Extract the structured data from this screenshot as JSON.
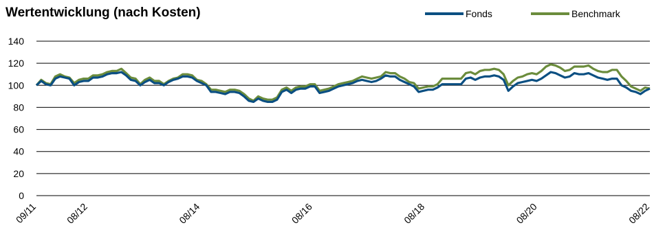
{
  "chart_data": {
    "type": "line",
    "title": "Wertentwicklung (nach Kosten)",
    "ylim": [
      0,
      140
    ],
    "yticks": [
      0,
      20,
      40,
      60,
      80,
      100,
      120,
      140
    ],
    "xticks": [
      "09/11",
      "08/12",
      "08/14",
      "08/16",
      "08/18",
      "08/20",
      "08/22"
    ],
    "xrange": [
      "09/11",
      "08/22"
    ],
    "grid": "horizontal",
    "legend_position": "top-right",
    "series": [
      {
        "name": "Fonds",
        "color": "#0b4f82",
        "values": [
          100,
          104,
          101,
          100,
          106,
          108,
          107,
          106,
          100,
          103,
          104,
          104,
          107,
          107,
          108,
          110,
          111,
          111,
          112,
          109,
          105,
          104,
          100,
          103,
          105,
          102,
          102,
          100,
          103,
          105,
          106,
          108,
          108,
          107,
          104,
          102,
          100,
          94,
          94,
          93,
          92,
          94,
          94,
          93,
          90,
          86,
          85,
          88,
          86,
          85,
          85,
          87,
          94,
          96,
          93,
          96,
          97,
          97,
          99,
          99,
          93,
          94,
          95,
          97,
          99,
          100,
          101,
          102,
          104,
          105,
          104,
          103,
          104,
          106,
          109,
          108,
          108,
          105,
          103,
          101,
          99,
          94,
          95,
          96,
          96,
          98,
          101,
          101,
          101,
          101,
          101,
          106,
          107,
          105,
          107,
          108,
          108,
          109,
          108,
          105,
          95,
          99,
          102,
          103,
          104,
          105,
          104,
          106,
          109,
          112,
          111,
          109,
          107,
          108,
          111,
          110,
          110,
          111,
          109,
          107,
          106,
          105,
          106,
          106,
          100,
          98,
          95,
          94,
          92,
          95,
          97
        ]
      },
      {
        "name": "Benchmark",
        "color": "#6b8c3c",
        "values": [
          100,
          105,
          102,
          101,
          108,
          110,
          108,
          107,
          102,
          105,
          106,
          106,
          109,
          109,
          110,
          112,
          113,
          113,
          115,
          111,
          107,
          106,
          101,
          105,
          107,
          104,
          104,
          101,
          104,
          106,
          107,
          110,
          110,
          109,
          105,
          104,
          101,
          96,
          96,
          95,
          94,
          96,
          96,
          95,
          92,
          88,
          86,
          90,
          88,
          87,
          87,
          89,
          96,
          98,
          95,
          98,
          99,
          99,
          101,
          101,
          95,
          96,
          97,
          99,
          101,
          102,
          103,
          104,
          106,
          108,
          107,
          106,
          107,
          108,
          112,
          111,
          111,
          108,
          106,
          103,
          102,
          97,
          98,
          99,
          99,
          101,
          106,
          106,
          106,
          106,
          106,
          111,
          112,
          110,
          113,
          114,
          114,
          115,
          114,
          110,
          100,
          104,
          107,
          108,
          110,
          111,
          110,
          113,
          117,
          119,
          118,
          116,
          113,
          114,
          117,
          117,
          117,
          118,
          115,
          113,
          112,
          112,
          114,
          114,
          108,
          104,
          99,
          97,
          95,
          98,
          97
        ]
      }
    ]
  }
}
